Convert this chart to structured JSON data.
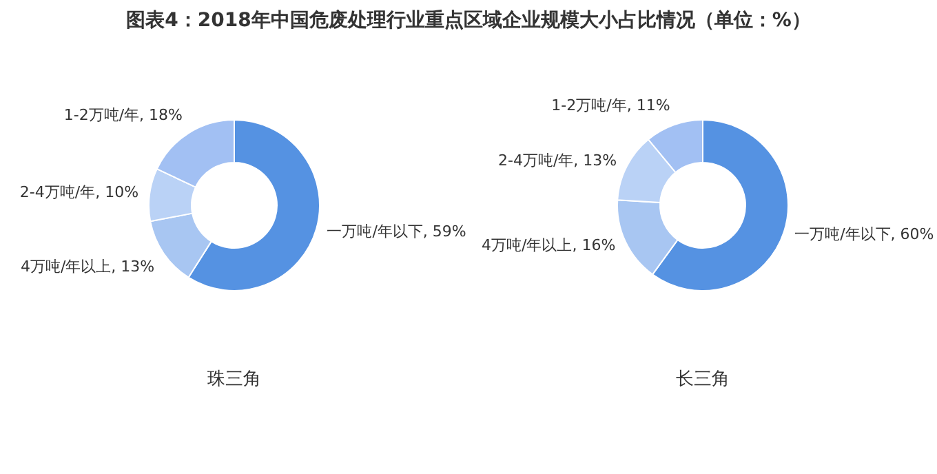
{
  "chart_data": [
    {
      "type": "donut",
      "title": "图表4：2018年中国危废处理行业重点区域企业规模大小占比情况（单位：%）",
      "xlabel": "珠三角",
      "categories": [
        "一万吨/年以下",
        "4万吨/年以上",
        "2-4万吨/年",
        "1-2万吨/年"
      ],
      "values": [
        59,
        13,
        10,
        18
      ],
      "value_labels": [
        "59%",
        "13%",
        "10%",
        "18%"
      ],
      "colors": [
        "#5592e2",
        "#a8c6f2",
        "#bad2f6",
        "#a2c0f3"
      ]
    },
    {
      "type": "donut",
      "xlabel": "长三角",
      "categories": [
        "一万吨/年以下",
        "4万吨/年以上",
        "2-4万吨/年",
        "1-2万吨/年"
      ],
      "values": [
        60,
        16,
        13,
        11
      ],
      "value_labels": [
        "60%",
        "16%",
        "13%",
        "11%"
      ],
      "colors": [
        "#5592e2",
        "#a8c6f2",
        "#bad2f6",
        "#a2c0f3"
      ]
    }
  ]
}
